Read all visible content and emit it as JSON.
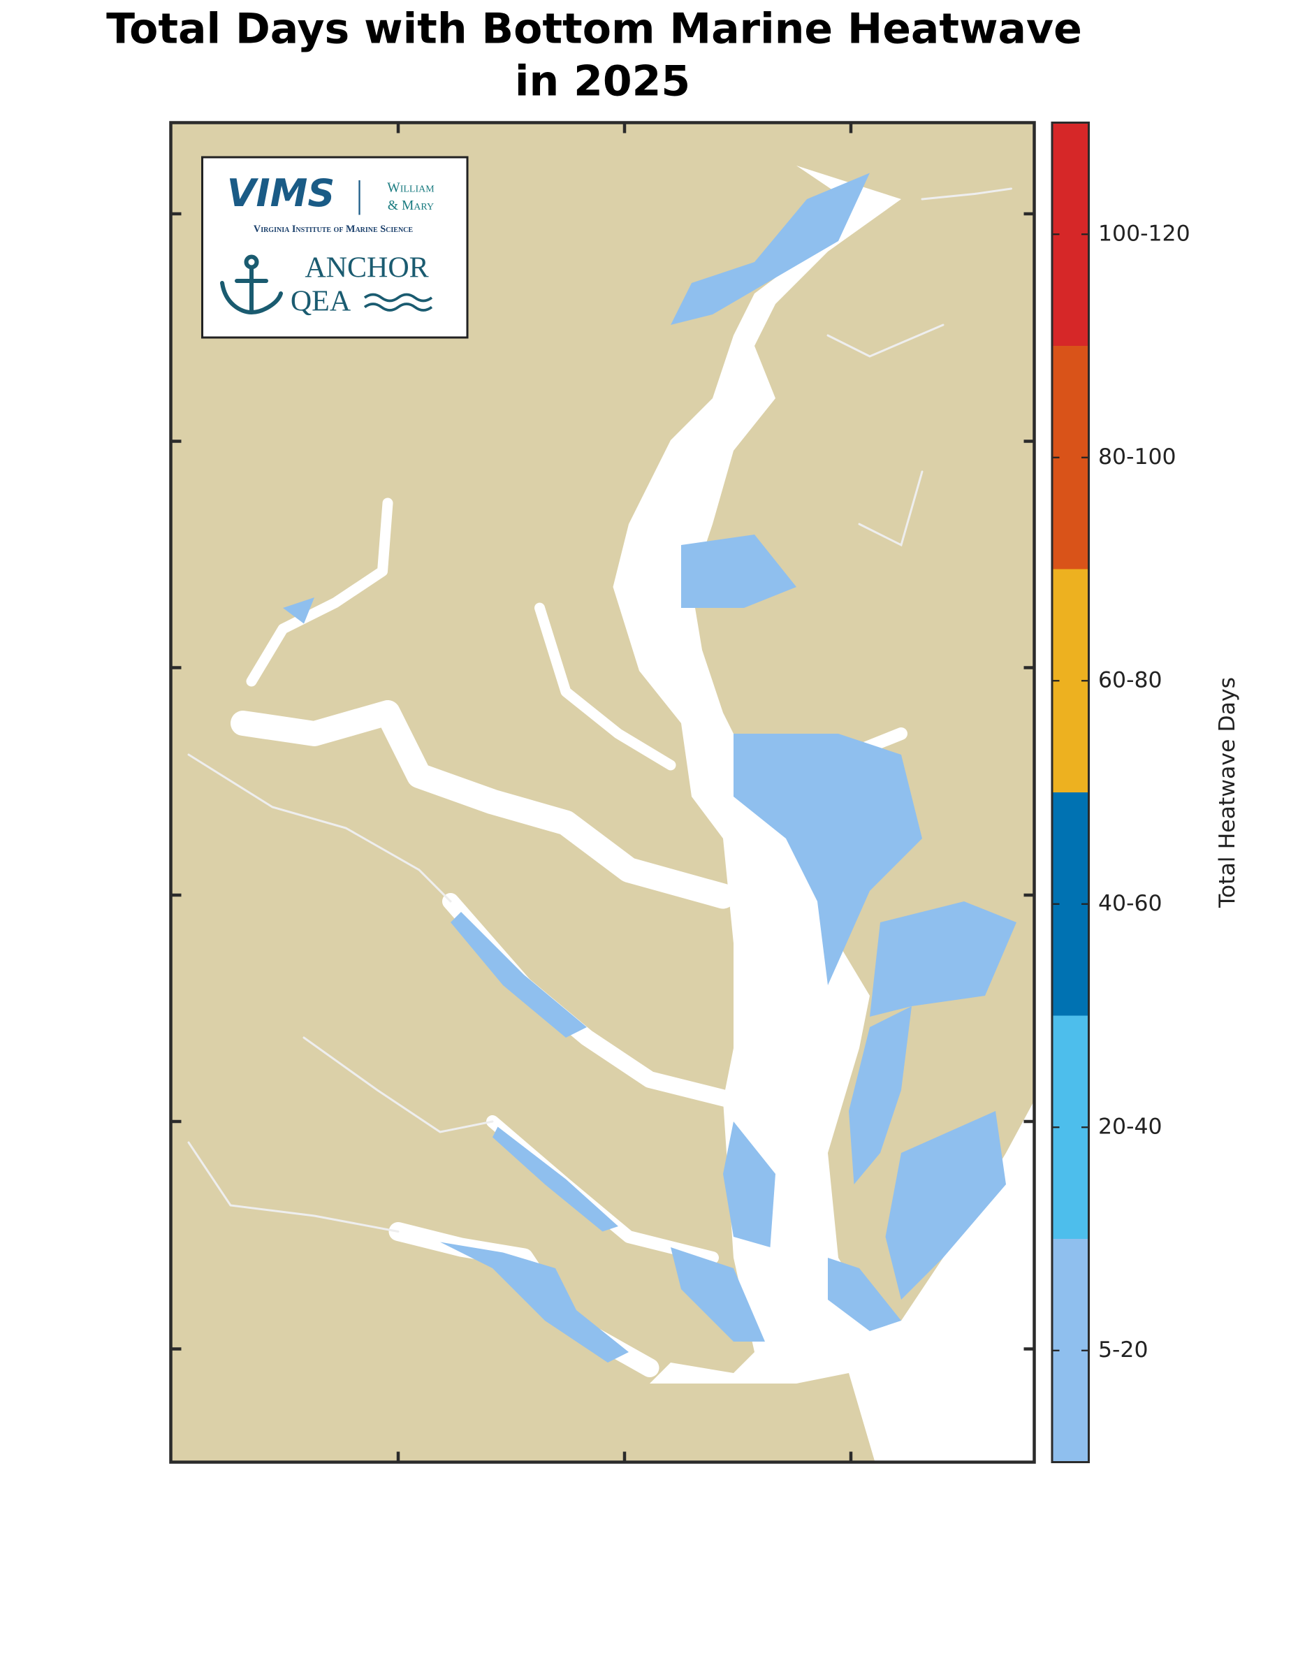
{
  "title": [
    "Total Days with Bottom Marine Heatwave",
    "in 2025"
  ],
  "logo": {
    "vims": "VIMS",
    "william": "William",
    "mary": "& Mary",
    "institute": "Virginia Institute of Marine Science",
    "anchor": "ANCHOR",
    "qea": "QEA"
  },
  "legend": {
    "title": "Total Heatwave Days",
    "bins": [
      {
        "label": "5-20",
        "color": "#8fbfee"
      },
      {
        "label": "20-40",
        "color": "#4dbeec"
      },
      {
        "label": "40-60",
        "color": "#0072b2"
      },
      {
        "label": "60-80",
        "color": "#edb120"
      },
      {
        "label": "80-100",
        "color": "#d95319"
      },
      {
        "label": "100-120",
        "color": "#d62728"
      }
    ]
  }
}
